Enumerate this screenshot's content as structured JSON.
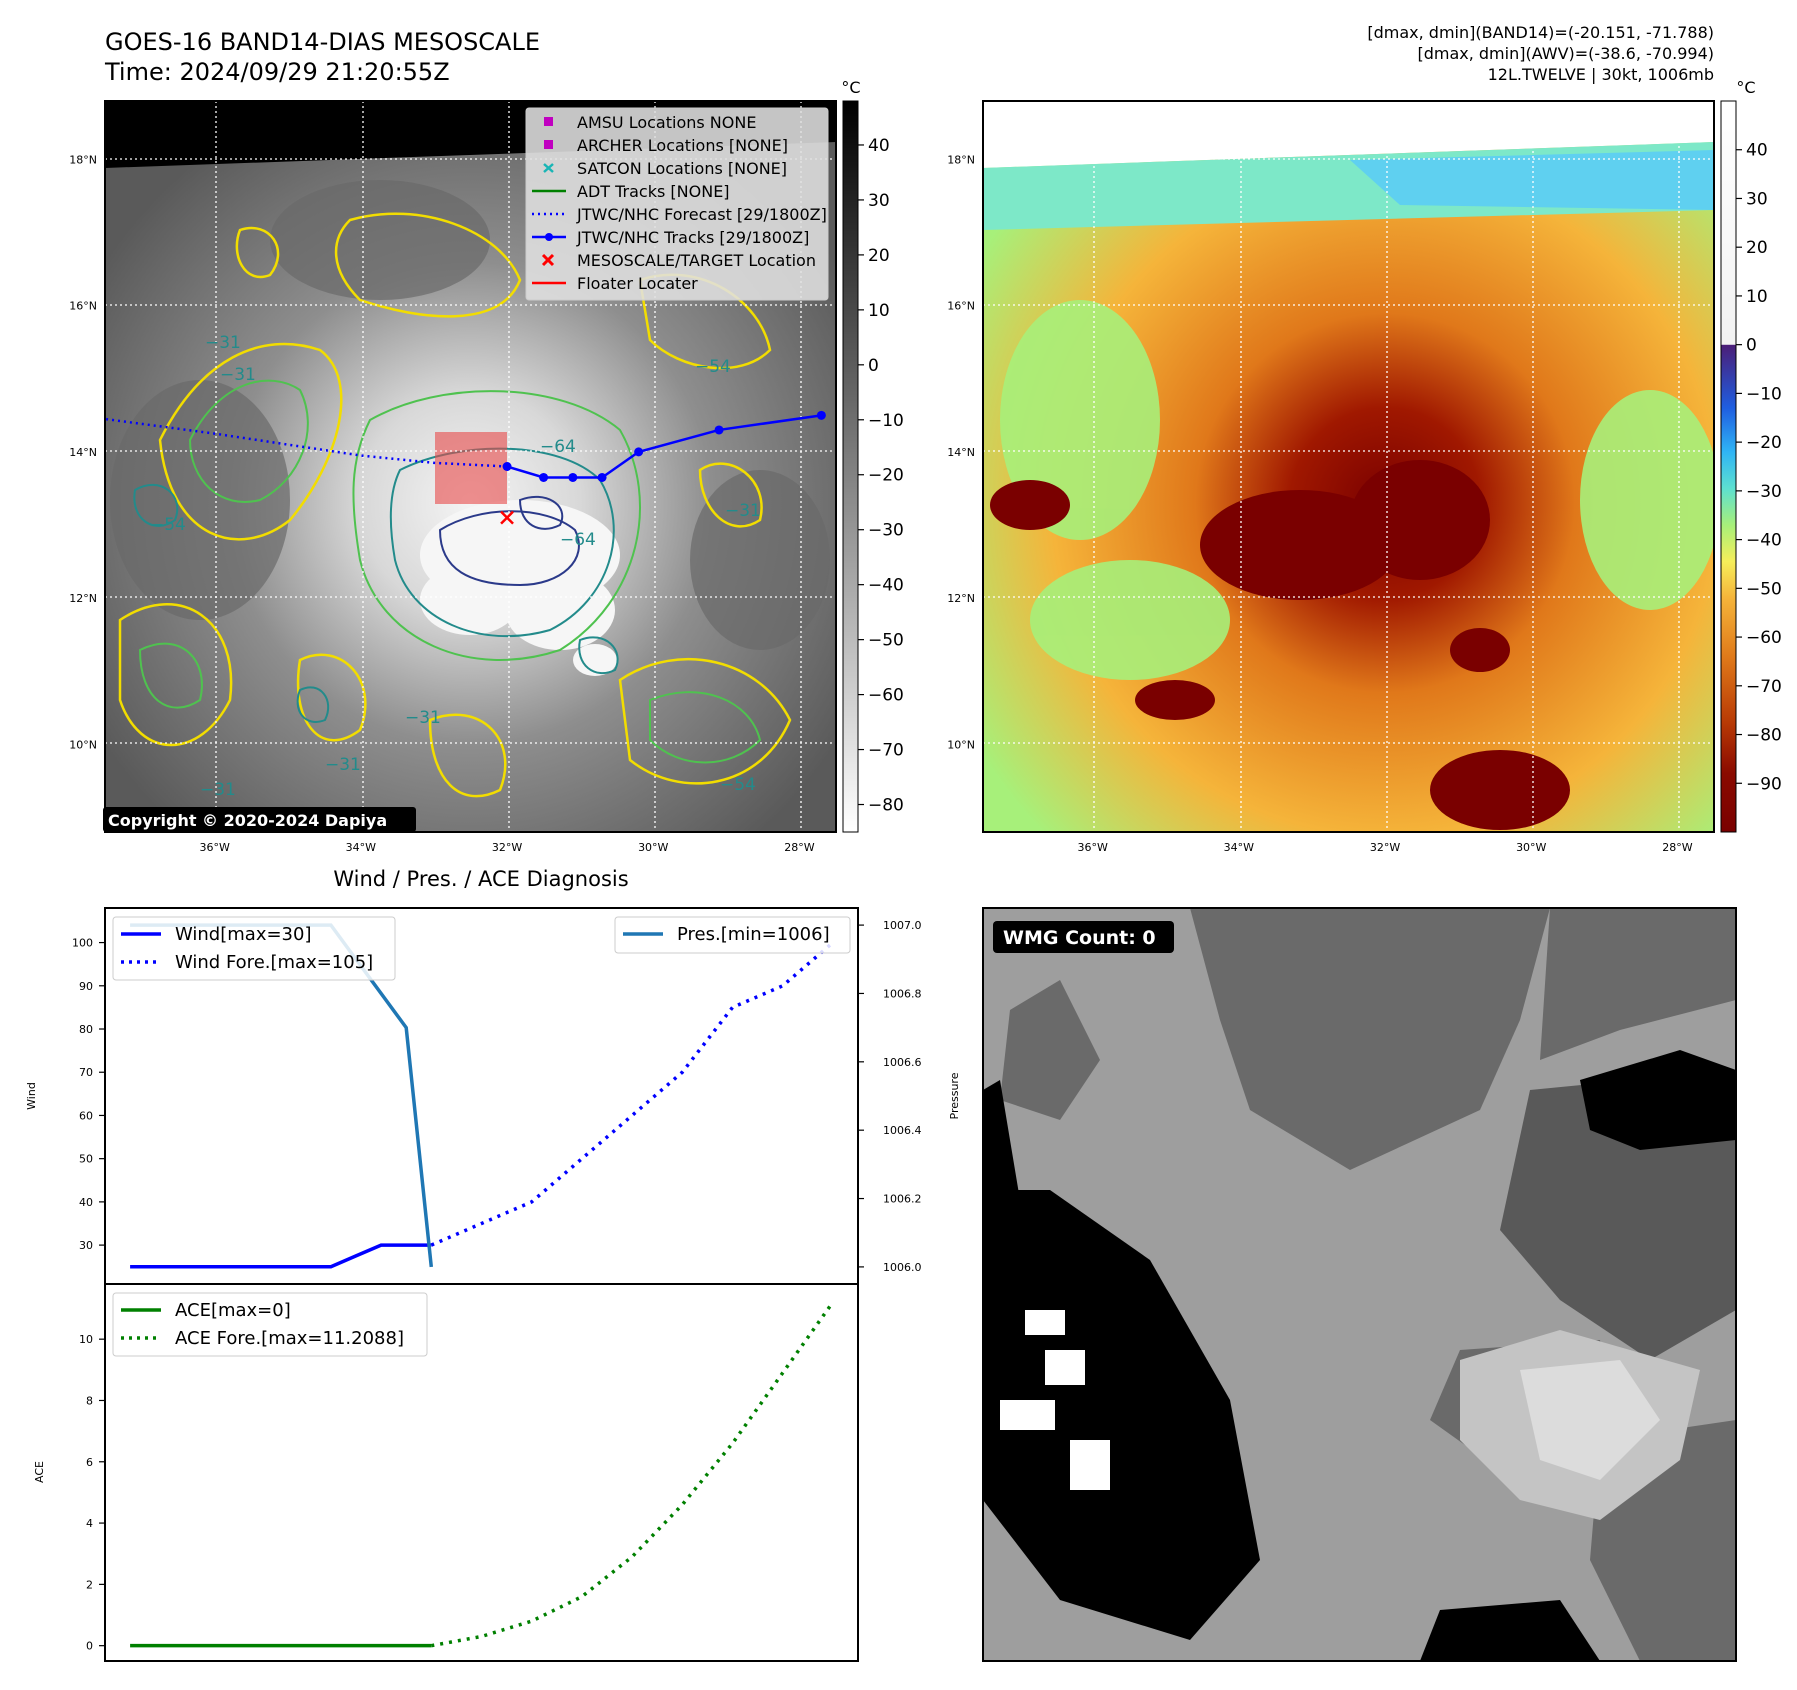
{
  "header": {
    "title": "GOES-16 BAND14-DIAS MESOSCALE",
    "time": "Time: 2024/09/29 21:20:55Z",
    "info_line1": "[dmax, dmin](BAND14)=(-20.151, -71.788)",
    "info_line2": "[dmax, dmin](AWV)=(-38.6, -70.994)",
    "info_line3": "12L.TWELVE | 30kt, 1006mb"
  },
  "map": {
    "lat_labels": [
      "18°N",
      "16°N",
      "14°N",
      "12°N",
      "10°N"
    ],
    "lat_values": [
      18,
      16,
      14,
      12,
      10
    ],
    "lon_labels": [
      "36°W",
      "34°W",
      "32°W",
      "30°W",
      "28°W"
    ],
    "lon_values": [
      -36,
      -34,
      -32,
      -30,
      -28
    ],
    "extent": {
      "lon_min": -37.5,
      "lon_max": -27.5,
      "lat_min": 8.8,
      "lat_max": 18.8
    },
    "copyright": "Copyright © 2020-2024 Dapiya",
    "contour_labels": [
      "−31",
      "−54",
      "−64",
      "−54",
      "−31",
      "−31",
      "−31",
      "−31",
      "−54",
      "−64",
      "−31"
    ],
    "legend": [
      {
        "label": "AMSU Locations NONE",
        "kind": "square",
        "color": "#c000c0"
      },
      {
        "label": "ARCHER Locations [NONE]",
        "kind": "square",
        "color": "#c000c0"
      },
      {
        "label": "SATCON Locations [NONE]",
        "kind": "cross",
        "color": "#19b5b5"
      },
      {
        "label": "ADT Tracks [NONE]",
        "kind": "line",
        "color": "#008000"
      },
      {
        "label": "JTWC/NHC Forecast [29/1800Z]",
        "kind": "dotted",
        "color": "#0000ff"
      },
      {
        "label": "JTWC/NHC Tracks [29/1800Z]",
        "kind": "line-dot",
        "color": "#0000ff"
      },
      {
        "label": "MESOSCALE/TARGET Location",
        "kind": "x",
        "color": "#ff0000"
      },
      {
        "label": "Floater Locater",
        "kind": "line",
        "color": "#ff0000"
      }
    ],
    "track": [
      [
        -32.0,
        13.8
      ],
      [
        -31.5,
        13.65
      ],
      [
        -31.1,
        13.65
      ],
      [
        -30.7,
        13.65
      ],
      [
        -30.2,
        14.0
      ],
      [
        -29.1,
        14.3
      ],
      [
        -27.7,
        14.5
      ]
    ],
    "forecast": [
      [
        -32.0,
        13.8
      ],
      [
        -33.0,
        13.85
      ],
      [
        -34.0,
        13.95
      ],
      [
        -35.0,
        14.1
      ],
      [
        -36.0,
        14.25
      ],
      [
        -37.5,
        14.45
      ]
    ],
    "target": [
      -32.0,
      13.1
    ],
    "colorbar1": {
      "unit": "°C",
      "ticks": [
        40,
        30,
        20,
        10,
        0,
        -10,
        -20,
        -30,
        -40,
        -50,
        -60,
        -70,
        -80
      ],
      "tick_labels": [
        "40",
        "30",
        "20",
        "10",
        "0",
        "−10",
        "−20",
        "−30",
        "−40",
        "−50",
        "−60",
        "−70",
        "−80"
      ],
      "min": -85,
      "max": 48
    },
    "colorbar2": {
      "unit": "°C",
      "ticks": [
        40,
        30,
        20,
        10,
        0,
        -10,
        -20,
        -30,
        -40,
        -50,
        -60,
        -70,
        -80,
        -90
      ],
      "tick_labels": [
        "40",
        "30",
        "20",
        "10",
        "0",
        "−10",
        "−20",
        "−30",
        "−40",
        "−50",
        "−60",
        "−70",
        "−80",
        "−90"
      ],
      "min": -100,
      "max": 50
    }
  },
  "chart_data": [
    {
      "type": "line",
      "title": "Wind / Pres. / ACE Diagnosis",
      "ylabel": "Wind",
      "y2label": "Pressure",
      "ylim": [
        21,
        108
      ],
      "y2lim": [
        1005.95,
        1007.05
      ],
      "yticks": [
        30,
        40,
        50,
        60,
        70,
        80,
        90,
        100
      ],
      "y2ticks": [
        1006.0,
        1006.2,
        1006.4,
        1006.6,
        1006.8,
        1007.0
      ],
      "y2tick_labels": [
        "1006.0",
        "1006.2",
        "1006.4",
        "1006.6",
        "1006.8",
        "1007.0"
      ],
      "x_range": [
        0,
        30
      ],
      "legend_left": [
        "Wind[max=30]",
        "Wind Fore.[max=105]"
      ],
      "legend_right": [
        "Pres.[min=1006]"
      ],
      "series": [
        {
          "name": "Wind[max=30]",
          "color": "#0000ff",
          "style": "solid",
          "x": [
            1,
            2,
            3,
            4,
            5,
            6,
            7,
            8,
            9,
            10,
            11,
            12,
            13
          ],
          "y": [
            25,
            25,
            25,
            25,
            25,
            25,
            25,
            25,
            25,
            27.5,
            30,
            30,
            30
          ]
        },
        {
          "name": "Wind Fore.[max=105]",
          "color": "#0000ff",
          "style": "dotted",
          "x": [
            13,
            15,
            17,
            19,
            21,
            23,
            25,
            27,
            29
          ],
          "y": [
            30,
            35,
            40,
            50,
            60,
            70,
            85,
            90,
            100
          ]
        },
        {
          "name": "Pres.[min=1006]",
          "color": "#1f77b4",
          "style": "solid",
          "axis": "right",
          "x": [
            1,
            5,
            9,
            12,
            13
          ],
          "y": [
            1007.0,
            1007.0,
            1007.0,
            1006.7,
            1006.0
          ]
        }
      ]
    },
    {
      "type": "line",
      "ylabel": "ACE",
      "ylim": [
        -0.5,
        11.8
      ],
      "yticks": [
        0,
        2,
        4,
        6,
        8,
        10
      ],
      "x_range": [
        0,
        30
      ],
      "legend": [
        "ACE[max=0]",
        "ACE Fore.[max=11.2088]"
      ],
      "series": [
        {
          "name": "ACE[max=0]",
          "color": "#008000",
          "style": "solid",
          "x": [
            1,
            5,
            9,
            13
          ],
          "y": [
            0,
            0,
            0,
            0
          ]
        },
        {
          "name": "ACE Fore.[max=11.2088]",
          "color": "#008000",
          "style": "dotted",
          "x": [
            13,
            15,
            17,
            19,
            21,
            23,
            25,
            27,
            29
          ],
          "y": [
            0,
            0.3,
            0.8,
            1.6,
            2.9,
            4.6,
            6.6,
            8.9,
            11.2088
          ]
        }
      ]
    }
  ],
  "wmg": {
    "label": "WMG Count: 0"
  }
}
